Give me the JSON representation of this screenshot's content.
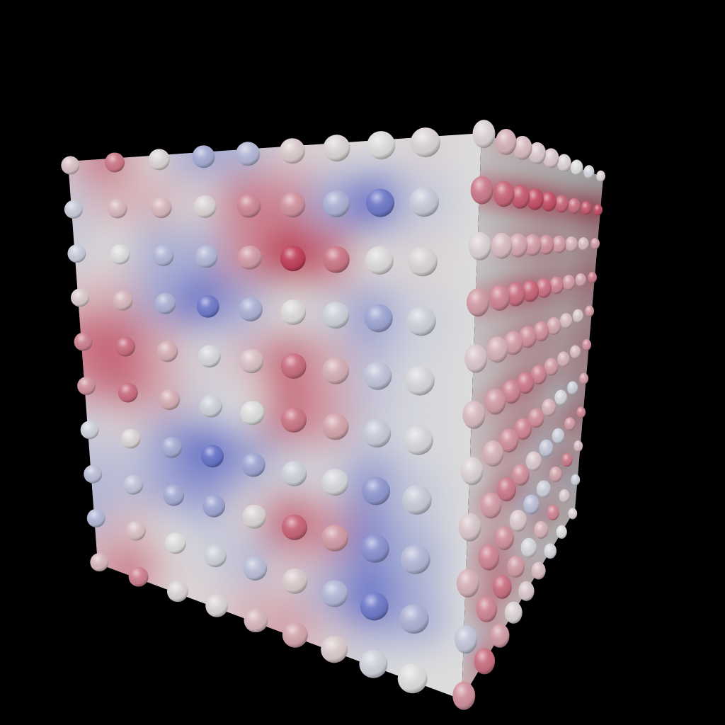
{
  "scene": {
    "background": "#000000",
    "colormap": {
      "name": "coolwarm",
      "cold": "#3b4cc0",
      "neutral": "#dddddd",
      "warm": "#b40426"
    },
    "front_face_samples": [
      [
        0.15,
        0.55,
        0.05,
        -0.4,
        -0.3,
        0.1,
        0.05,
        0.0,
        0.05
      ],
      [
        -0.15,
        0.2,
        0.2,
        0.05,
        0.45,
        0.4,
        -0.35,
        -0.8,
        -0.15
      ],
      [
        -0.15,
        0.0,
        -0.3,
        -0.3,
        0.35,
        0.85,
        0.55,
        0.02,
        0.05
      ],
      [
        0.1,
        0.2,
        -0.35,
        -0.8,
        -0.35,
        0.02,
        -0.1,
        -0.45,
        -0.1
      ],
      [
        0.5,
        0.6,
        0.25,
        -0.05,
        0.15,
        0.6,
        0.25,
        -0.2,
        -0.05
      ],
      [
        0.4,
        0.6,
        0.25,
        -0.1,
        0.0,
        0.55,
        0.3,
        -0.15,
        -0.05
      ],
      [
        -0.1,
        0.05,
        -0.4,
        -0.85,
        -0.45,
        -0.1,
        -0.05,
        -0.55,
        -0.15
      ],
      [
        -0.25,
        -0.2,
        -0.4,
        -0.45,
        0.05,
        0.65,
        0.35,
        -0.6,
        -0.3
      ],
      [
        -0.3,
        0.15,
        0.0,
        -0.1,
        -0.25,
        0.1,
        -0.3,
        -0.8,
        -0.35
      ],
      [
        0.2,
        0.5,
        0.05,
        0.05,
        0.2,
        0.3,
        0.1,
        -0.1,
        0.0
      ]
    ],
    "right_face_samples": [
      [
        0.05,
        0.2,
        0.15,
        0.1,
        0.1,
        0.05,
        0.0,
        -0.05,
        0.05
      ],
      [
        0.45,
        0.55,
        0.6,
        0.65,
        0.65,
        0.55,
        0.5,
        0.6,
        0.65
      ],
      [
        0.05,
        0.15,
        0.25,
        0.3,
        0.35,
        0.3,
        0.2,
        0.15,
        0.3
      ],
      [
        0.3,
        0.4,
        0.5,
        0.55,
        0.5,
        0.4,
        0.3,
        0.25,
        0.45
      ],
      [
        0.1,
        0.2,
        0.3,
        0.35,
        0.35,
        0.25,
        0.15,
        0.1,
        0.3
      ],
      [
        0.15,
        0.3,
        0.4,
        0.45,
        0.4,
        0.3,
        0.2,
        0.15,
        0.35
      ],
      [
        0.05,
        0.2,
        0.35,
        0.4,
        0.35,
        0.2,
        -0.05,
        -0.1,
        0.3
      ],
      [
        0.1,
        0.3,
        0.45,
        0.35,
        0.1,
        -0.15,
        -0.1,
        0.3,
        0.4
      ],
      [
        0.2,
        0.4,
        0.35,
        0.1,
        -0.2,
        -0.1,
        0.25,
        0.45,
        0.15
      ],
      [
        -0.15,
        0.4,
        0.5,
        0.3,
        -0.05,
        0.2,
        0.4,
        0.1,
        -0.1
      ],
      [
        0.35,
        0.5,
        0.3,
        0.05,
        0.1,
        0.15,
        -0.05,
        0.0,
        0.05
      ]
    ]
  }
}
